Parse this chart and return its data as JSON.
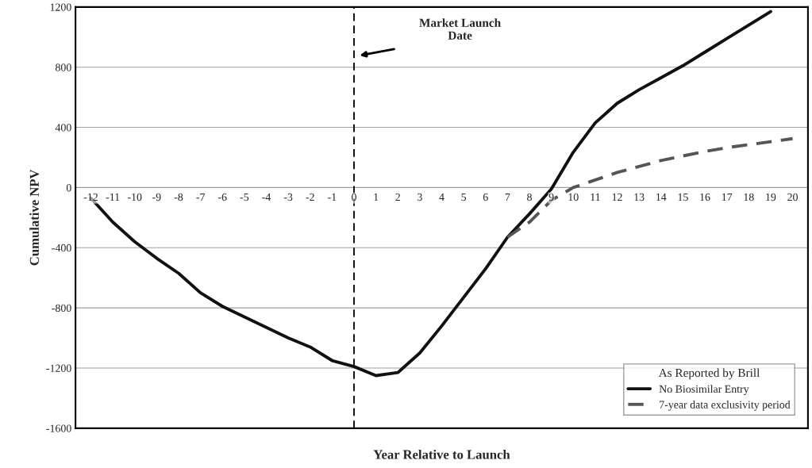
{
  "chart_data": {
    "type": "line",
    "xlabel": "Year Relative to Launch",
    "ylabel": "Cumulative NPV",
    "categories": [
      "-12",
      "-11",
      "-10",
      "-9",
      "-8",
      "-7",
      "-6",
      "-5",
      "-4",
      "-3",
      "-2",
      "-1",
      "0",
      "1",
      "2",
      "3",
      "4",
      "5",
      "6",
      "7",
      "8",
      "9",
      "10",
      "11",
      "12",
      "13",
      "14",
      "15",
      "16",
      "17",
      "18",
      "19",
      "20"
    ],
    "series": [
      {
        "name": "No Biosimilar Entry",
        "color": "#111111",
        "line_style": "solid",
        "values": [
          -70,
          -230,
          -360,
          -470,
          -570,
          -700,
          -790,
          -860,
          -930,
          -1000,
          -1060,
          -1150,
          -1190,
          -1250,
          -1230,
          -1100,
          -920,
          -730,
          -540,
          -330,
          -175,
          -10,
          235,
          430,
          560,
          650,
          730,
          810,
          900,
          990,
          1080,
          1170,
          null
        ]
      },
      {
        "name": "7-year data exclusivity period",
        "color": "#555555",
        "line_style": "dashed",
        "values": [
          null,
          null,
          null,
          null,
          null,
          null,
          null,
          null,
          null,
          null,
          null,
          null,
          null,
          null,
          null,
          null,
          null,
          null,
          null,
          -330,
          -230,
          -85,
          0,
          50,
          100,
          140,
          180,
          210,
          240,
          265,
          285,
          305,
          325
        ]
      }
    ],
    "ylim": [
      -1600,
      1200
    ],
    "yticks": [
      -1600,
      -1200,
      -800,
      -400,
      0,
      400,
      800,
      1200
    ],
    "grid": "y",
    "legend": "bottom right",
    "legend_title": "As Reported by Brill",
    "ref_lines": [
      {
        "axis": "x",
        "value": "0",
        "color": "#111111",
        "line_style": "dashed"
      }
    ],
    "annotations": [
      "Market Launch\nDate"
    ]
  }
}
